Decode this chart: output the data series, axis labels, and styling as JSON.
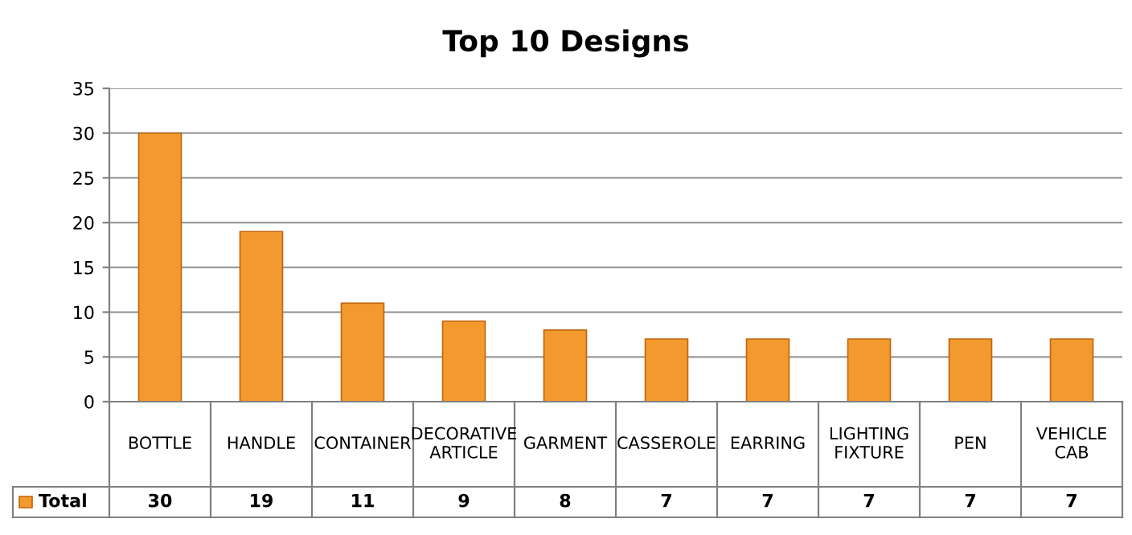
{
  "chart_data": {
    "type": "bar",
    "title": "Top 10 Designs",
    "categories": [
      "BOTTLE",
      "HANDLE",
      "CONTAINER",
      "DECORATIVE ARTICLE",
      "GARMENT",
      "CASSEROLE",
      "EARRING",
      "LIGHTING FIXTURE",
      "PEN",
      "VEHICLE CAB"
    ],
    "series": [
      {
        "name": "Total",
        "color": "#f39a2e",
        "values": [
          30,
          19,
          11,
          9,
          8,
          7,
          7,
          7,
          7,
          7
        ]
      }
    ],
    "ylim": [
      0,
      35
    ],
    "yticks": [
      0,
      5,
      10,
      15,
      20,
      25,
      30,
      35
    ],
    "grid": "y",
    "data_labels": true,
    "legend": "bottom left"
  }
}
